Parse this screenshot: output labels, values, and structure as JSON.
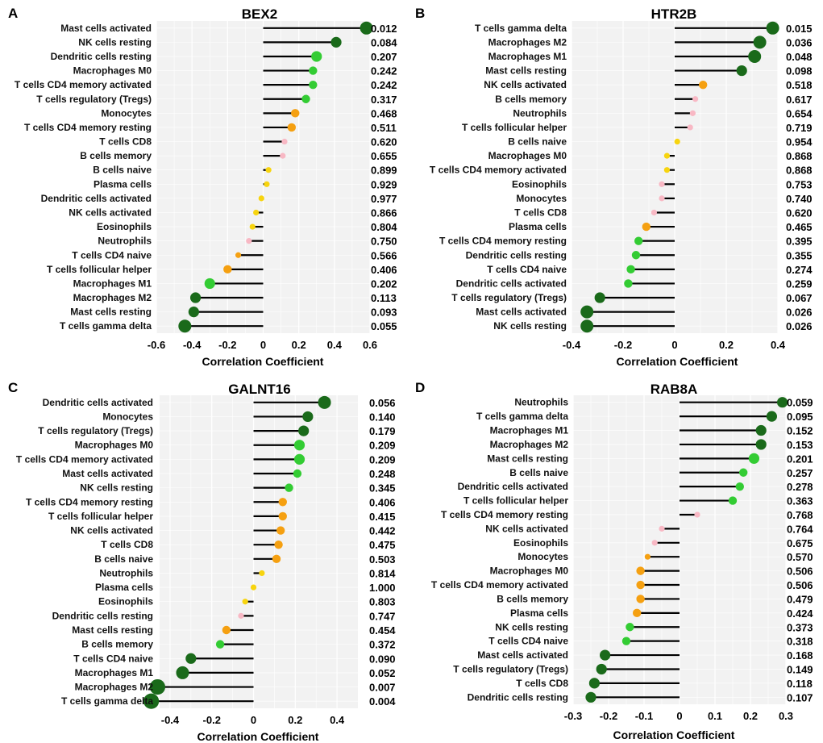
{
  "colors": {
    "dark_green": "#1a6a1a",
    "green": "#33cc33",
    "orange": "#f5a011",
    "yellow": "#f7d40f",
    "pink": "#f8b8c4",
    "stem": "#000000",
    "panel_bg": "#f2f2f2"
  },
  "chart_data": [
    {
      "type": "lollipop",
      "panel": "A",
      "title": "BEX2",
      "xlabel": "Correlation Coefficient",
      "xlim": [
        -0.6,
        0.6
      ],
      "xticks": [
        -0.6,
        -0.4,
        -0.2,
        0,
        0.2,
        0.4,
        0.6
      ],
      "xtick_labels": [
        "-0.6",
        "-0.4",
        "-0.2",
        "0",
        "0.2",
        "0.4",
        "0.6"
      ],
      "rows": [
        {
          "category": "Mast cells activated",
          "value": 0.58,
          "pvalue": "0.012",
          "color": "dark_green",
          "size": "large"
        },
        {
          "category": "NK cells resting",
          "value": 0.41,
          "pvalue": "0.084",
          "color": "dark_green",
          "size": "medium"
        },
        {
          "category": "Dendritic cells resting",
          "value": 0.3,
          "pvalue": "0.207",
          "color": "green",
          "size": "medium"
        },
        {
          "category": "Macrophages M0",
          "value": 0.28,
          "pvalue": "0.242",
          "color": "green",
          "size": "small"
        },
        {
          "category": "T cells CD4 memory activated",
          "value": 0.28,
          "pvalue": "0.242",
          "color": "green",
          "size": "small"
        },
        {
          "category": "T cells regulatory (Tregs)",
          "value": 0.24,
          "pvalue": "0.317",
          "color": "green",
          "size": "small"
        },
        {
          "category": "Monocytes",
          "value": 0.18,
          "pvalue": "0.468",
          "color": "orange",
          "size": "small"
        },
        {
          "category": "T cells CD4 memory resting",
          "value": 0.16,
          "pvalue": "0.511",
          "color": "orange",
          "size": "small"
        },
        {
          "category": "T cells CD8",
          "value": 0.12,
          "pvalue": "0.620",
          "color": "pink",
          "size": "tiny"
        },
        {
          "category": "B cells memory",
          "value": 0.11,
          "pvalue": "0.655",
          "color": "pink",
          "size": "tiny"
        },
        {
          "category": "B cells naive",
          "value": 0.03,
          "pvalue": "0.899",
          "color": "yellow",
          "size": "tiny"
        },
        {
          "category": "Plasma cells",
          "value": 0.02,
          "pvalue": "0.929",
          "color": "yellow",
          "size": "tiny"
        },
        {
          "category": "Dendritic cells activated",
          "value": -0.01,
          "pvalue": "0.977",
          "color": "yellow",
          "size": "tiny"
        },
        {
          "category": "NK cells activated",
          "value": -0.04,
          "pvalue": "0.866",
          "color": "yellow",
          "size": "tiny"
        },
        {
          "category": "Eosinophils",
          "value": -0.06,
          "pvalue": "0.804",
          "color": "yellow",
          "size": "tiny"
        },
        {
          "category": "Neutrophils",
          "value": -0.08,
          "pvalue": "0.750",
          "color": "pink",
          "size": "tiny"
        },
        {
          "category": "T cells CD4 naive",
          "value": -0.14,
          "pvalue": "0.566",
          "color": "orange",
          "size": "tiny"
        },
        {
          "category": "T cells follicular helper",
          "value": -0.2,
          "pvalue": "0.406",
          "color": "orange",
          "size": "small"
        },
        {
          "category": "Macrophages M1",
          "value": -0.3,
          "pvalue": "0.202",
          "color": "green",
          "size": "medium"
        },
        {
          "category": "Macrophages M2",
          "value": -0.38,
          "pvalue": "0.113",
          "color": "dark_green",
          "size": "medium"
        },
        {
          "category": "Mast cells resting",
          "value": -0.39,
          "pvalue": "0.093",
          "color": "dark_green",
          "size": "medium"
        },
        {
          "category": "T cells gamma delta",
          "value": -0.44,
          "pvalue": "0.055",
          "color": "dark_green",
          "size": "large"
        }
      ]
    },
    {
      "type": "lollipop",
      "panel": "B",
      "title": "HTR2B",
      "xlabel": "Correlation Coefficient",
      "xlim": [
        -0.4,
        0.4
      ],
      "xticks": [
        -0.4,
        -0.2,
        0,
        0.2,
        0.4
      ],
      "xtick_labels": [
        "-0.4",
        "-0.2",
        "0",
        "0.2",
        "0.4"
      ],
      "rows": [
        {
          "category": "T cells gamma delta",
          "value": 0.38,
          "pvalue": "0.015",
          "color": "dark_green",
          "size": "large"
        },
        {
          "category": "Macrophages M2",
          "value": 0.33,
          "pvalue": "0.036",
          "color": "dark_green",
          "size": "large"
        },
        {
          "category": "Macrophages M1",
          "value": 0.31,
          "pvalue": "0.048",
          "color": "dark_green",
          "size": "large"
        },
        {
          "category": "Mast cells resting",
          "value": 0.26,
          "pvalue": "0.098",
          "color": "dark_green",
          "size": "medium"
        },
        {
          "category": "NK cells activated",
          "value": 0.11,
          "pvalue": "0.518",
          "color": "orange",
          "size": "small"
        },
        {
          "category": "B cells memory",
          "value": 0.08,
          "pvalue": "0.617",
          "color": "pink",
          "size": "tiny"
        },
        {
          "category": "Neutrophils",
          "value": 0.07,
          "pvalue": "0.654",
          "color": "pink",
          "size": "tiny"
        },
        {
          "category": "T cells follicular helper",
          "value": 0.06,
          "pvalue": "0.719",
          "color": "pink",
          "size": "tiny"
        },
        {
          "category": "B cells naive",
          "value": 0.01,
          "pvalue": "0.954",
          "color": "yellow",
          "size": "tiny"
        },
        {
          "category": "Macrophages M0",
          "value": -0.03,
          "pvalue": "0.868",
          "color": "yellow",
          "size": "tiny"
        },
        {
          "category": "T cells CD4 memory activated",
          "value": -0.03,
          "pvalue": "0.868",
          "color": "yellow",
          "size": "tiny"
        },
        {
          "category": "Eosinophils",
          "value": -0.05,
          "pvalue": "0.753",
          "color": "pink",
          "size": "tiny"
        },
        {
          "category": "Monocytes",
          "value": -0.05,
          "pvalue": "0.740",
          "color": "pink",
          "size": "tiny"
        },
        {
          "category": "T cells CD8",
          "value": -0.08,
          "pvalue": "0.620",
          "color": "pink",
          "size": "tiny"
        },
        {
          "category": "Plasma cells",
          "value": -0.11,
          "pvalue": "0.465",
          "color": "orange",
          "size": "small"
        },
        {
          "category": "T cells CD4 memory resting",
          "value": -0.14,
          "pvalue": "0.395",
          "color": "green",
          "size": "small"
        },
        {
          "category": "Dendritic cells resting",
          "value": -0.15,
          "pvalue": "0.355",
          "color": "green",
          "size": "small"
        },
        {
          "category": "T cells CD4 naive",
          "value": -0.17,
          "pvalue": "0.274",
          "color": "green",
          "size": "small"
        },
        {
          "category": "Dendritic cells activated",
          "value": -0.18,
          "pvalue": "0.259",
          "color": "green",
          "size": "small"
        },
        {
          "category": "T cells regulatory (Tregs)",
          "value": -0.29,
          "pvalue": "0.067",
          "color": "dark_green",
          "size": "medium"
        },
        {
          "category": "Mast cells activated",
          "value": -0.34,
          "pvalue": "0.026",
          "color": "dark_green",
          "size": "large"
        },
        {
          "category": "NK cells resting",
          "value": -0.34,
          "pvalue": "0.026",
          "color": "dark_green",
          "size": "large"
        }
      ]
    },
    {
      "type": "lollipop",
      "panel": "C",
      "title": "GALNT16",
      "xlabel": "Correlation Coefficient",
      "xlim": [
        -0.45,
        0.5
      ],
      "xticks": [
        -0.4,
        -0.2,
        0,
        0.2,
        0.4
      ],
      "xtick_labels": [
        "-0.4",
        "-0.2",
        "0",
        "0.2",
        "0.4"
      ],
      "rows": [
        {
          "category": "Dendritic cells activated",
          "value": 0.34,
          "pvalue": "0.056",
          "color": "dark_green",
          "size": "large"
        },
        {
          "category": "Monocytes",
          "value": 0.26,
          "pvalue": "0.140",
          "color": "dark_green",
          "size": "medium"
        },
        {
          "category": "T cells regulatory (Tregs)",
          "value": 0.24,
          "pvalue": "0.179",
          "color": "dark_green",
          "size": "medium"
        },
        {
          "category": "Macrophages M0",
          "value": 0.22,
          "pvalue": "0.209",
          "color": "green",
          "size": "medium"
        },
        {
          "category": "T cells CD4 memory activated",
          "value": 0.22,
          "pvalue": "0.209",
          "color": "green",
          "size": "medium"
        },
        {
          "category": "Mast cells activated",
          "value": 0.21,
          "pvalue": "0.248",
          "color": "green",
          "size": "small"
        },
        {
          "category": "NK cells resting",
          "value": 0.17,
          "pvalue": "0.345",
          "color": "green",
          "size": "small"
        },
        {
          "category": "T cells CD4 memory resting",
          "value": 0.14,
          "pvalue": "0.406",
          "color": "orange",
          "size": "small"
        },
        {
          "category": "T cells follicular helper",
          "value": 0.14,
          "pvalue": "0.415",
          "color": "orange",
          "size": "small"
        },
        {
          "category": "NK cells activated",
          "value": 0.13,
          "pvalue": "0.442",
          "color": "orange",
          "size": "small"
        },
        {
          "category": "T cells CD8",
          "value": 0.12,
          "pvalue": "0.475",
          "color": "orange",
          "size": "small"
        },
        {
          "category": "B cells naive",
          "value": 0.11,
          "pvalue": "0.503",
          "color": "orange",
          "size": "small"
        },
        {
          "category": "Neutrophils",
          "value": 0.04,
          "pvalue": "0.814",
          "color": "yellow",
          "size": "tiny"
        },
        {
          "category": "Plasma cells",
          "value": 0.0,
          "pvalue": "1.000",
          "color": "yellow",
          "size": "tiny"
        },
        {
          "category": "Eosinophils",
          "value": -0.04,
          "pvalue": "0.803",
          "color": "yellow",
          "size": "tiny"
        },
        {
          "category": "Dendritic cells resting",
          "value": -0.06,
          "pvalue": "0.747",
          "color": "pink",
          "size": "tiny"
        },
        {
          "category": "Mast cells resting",
          "value": -0.13,
          "pvalue": "0.454",
          "color": "orange",
          "size": "small"
        },
        {
          "category": "B cells memory",
          "value": -0.16,
          "pvalue": "0.372",
          "color": "green",
          "size": "small"
        },
        {
          "category": "T cells CD4 naive",
          "value": -0.3,
          "pvalue": "0.090",
          "color": "dark_green",
          "size": "medium"
        },
        {
          "category": "Macrophages M1",
          "value": -0.34,
          "pvalue": "0.052",
          "color": "dark_green",
          "size": "large"
        },
        {
          "category": "Macrophages M2",
          "value": -0.46,
          "pvalue": "0.007",
          "color": "dark_green",
          "size": "xlarge"
        },
        {
          "category": "T cells gamma delta",
          "value": -0.49,
          "pvalue": "0.004",
          "color": "dark_green",
          "size": "xlarge"
        }
      ]
    },
    {
      "type": "lollipop",
      "panel": "D",
      "title": "RAB8A",
      "xlabel": "Correlation Coefficient",
      "xlim": [
        -0.3,
        0.3
      ],
      "xticks": [
        -0.3,
        -0.2,
        -0.1,
        0,
        0.1,
        0.2,
        0.3
      ],
      "xtick_labels": [
        "-0.3",
        "-0.2",
        "-0.1",
        "0",
        "0.1",
        "0.2",
        "0.3"
      ],
      "rows": [
        {
          "category": "Neutrophils",
          "value": 0.29,
          "pvalue": "0.059",
          "color": "dark_green",
          "size": "medium"
        },
        {
          "category": "T cells gamma delta",
          "value": 0.26,
          "pvalue": "0.095",
          "color": "dark_green",
          "size": "medium"
        },
        {
          "category": "Macrophages M1",
          "value": 0.23,
          "pvalue": "0.152",
          "color": "dark_green",
          "size": "medium"
        },
        {
          "category": "Macrophages M2",
          "value": 0.23,
          "pvalue": "0.153",
          "color": "dark_green",
          "size": "medium"
        },
        {
          "category": "Mast cells resting",
          "value": 0.21,
          "pvalue": "0.201",
          "color": "green",
          "size": "medium"
        },
        {
          "category": "B cells naive",
          "value": 0.18,
          "pvalue": "0.257",
          "color": "green",
          "size": "small"
        },
        {
          "category": "Dendritic cells activated",
          "value": 0.17,
          "pvalue": "0.278",
          "color": "green",
          "size": "small"
        },
        {
          "category": "T cells follicular helper",
          "value": 0.15,
          "pvalue": "0.363",
          "color": "green",
          "size": "small"
        },
        {
          "category": "T cells CD4 memory resting",
          "value": 0.05,
          "pvalue": "0.768",
          "color": "pink",
          "size": "tiny"
        },
        {
          "category": "NK cells activated",
          "value": -0.05,
          "pvalue": "0.764",
          "color": "pink",
          "size": "tiny"
        },
        {
          "category": "Eosinophils",
          "value": -0.07,
          "pvalue": "0.675",
          "color": "pink",
          "size": "tiny"
        },
        {
          "category": "Monocytes",
          "value": -0.09,
          "pvalue": "0.570",
          "color": "orange",
          "size": "tiny"
        },
        {
          "category": "Macrophages M0",
          "value": -0.11,
          "pvalue": "0.506",
          "color": "orange",
          "size": "small"
        },
        {
          "category": "T cells CD4 memory activated",
          "value": -0.11,
          "pvalue": "0.506",
          "color": "orange",
          "size": "small"
        },
        {
          "category": "B cells memory",
          "value": -0.11,
          "pvalue": "0.479",
          "color": "orange",
          "size": "small"
        },
        {
          "category": "Plasma cells",
          "value": -0.12,
          "pvalue": "0.424",
          "color": "orange",
          "size": "small"
        },
        {
          "category": "NK cells resting",
          "value": -0.14,
          "pvalue": "0.373",
          "color": "green",
          "size": "small"
        },
        {
          "category": "T cells CD4 naive",
          "value": -0.15,
          "pvalue": "0.318",
          "color": "green",
          "size": "small"
        },
        {
          "category": "Mast cells activated",
          "value": -0.21,
          "pvalue": "0.168",
          "color": "dark_green",
          "size": "medium"
        },
        {
          "category": "T cells regulatory (Tregs)",
          "value": -0.22,
          "pvalue": "0.149",
          "color": "dark_green",
          "size": "medium"
        },
        {
          "category": "T cells CD8",
          "value": -0.24,
          "pvalue": "0.118",
          "color": "dark_green",
          "size": "medium"
        },
        {
          "category": "Dendritic cells resting",
          "value": -0.25,
          "pvalue": "0.107",
          "color": "dark_green",
          "size": "medium"
        }
      ]
    }
  ]
}
